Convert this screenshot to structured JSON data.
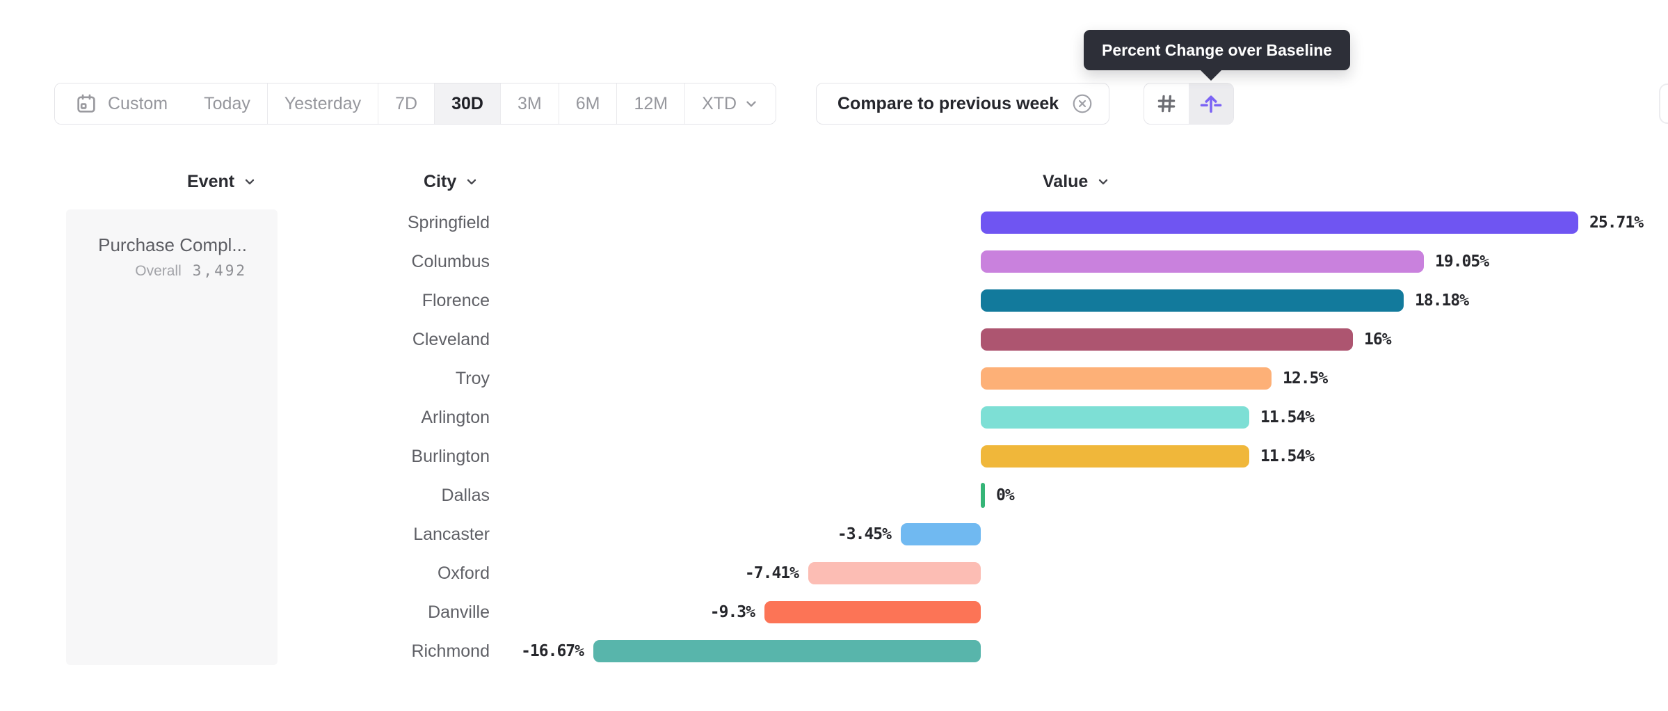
{
  "toolbar": {
    "custom_label": "Custom",
    "ranges": [
      "Today",
      "Yesterday",
      "7D",
      "30D",
      "3M",
      "6M",
      "12M"
    ],
    "selected_range": "30D",
    "xtd_label": "XTD",
    "compare_chip_label": "Compare to previous week"
  },
  "tooltip": {
    "text": "Percent Change over Baseline"
  },
  "headers": {
    "event": "Event",
    "city": "City",
    "value": "Value"
  },
  "event_panel": {
    "event_name": "Purchase Compl...",
    "overall_label": "Overall",
    "overall_value": "3,492"
  },
  "chart_data": {
    "type": "bar",
    "orientation": "horizontal",
    "title": "Percent Change over Baseline",
    "value_unit": "percent",
    "categories": [
      "Springfield",
      "Columbus",
      "Florence",
      "Cleveland",
      "Troy",
      "Arlington",
      "Burlington",
      "Dallas",
      "Lancaster",
      "Oxford",
      "Danville",
      "Richmond"
    ],
    "values": [
      25.71,
      19.05,
      18.18,
      16,
      12.5,
      11.54,
      11.54,
      0,
      -3.45,
      -7.41,
      -9.3,
      -16.67
    ],
    "value_labels": [
      "25.71%",
      "19.05%",
      "18.18%",
      "16%",
      "12.5%",
      "11.54%",
      "11.54%",
      "0%",
      "-3.45%",
      "-7.41%",
      "-9.3%",
      "-16.67%"
    ],
    "bar_colors": [
      "#6f55f2",
      "#c981dd",
      "#127a9c",
      "#ad5570",
      "#fdb077",
      "#7ddfd5",
      "#f0b73a",
      "#35b577",
      "#70b9f1",
      "#fcbdb4",
      "#fc7456",
      "#58b5ab"
    ],
    "baseline_value": 0,
    "xlim": [
      -16.67,
      25.71
    ],
    "grid": false,
    "legend": false
  },
  "icons": {
    "calendar": "calendar-icon",
    "chevron_down": "chevron-down-icon",
    "circle_x": "circle-x-icon",
    "hash_grid": "hash-grid-icon",
    "baseline_arrow": "arrow-up-from-baseline-icon"
  },
  "colors": {
    "accent_purple": "#7b63f4",
    "tooltip_bg": "#2d2f38",
    "selected_range_bg": "#f2f2f4",
    "selected_icon_bg": "#ececef",
    "panel_bg": "#f7f7f8",
    "border": "#e4e4e8",
    "toolbar_text": "#96979d",
    "dark_text": "#25262c",
    "city_label_text": "#5f6066",
    "baseline_tick_green": "#35b577"
  }
}
